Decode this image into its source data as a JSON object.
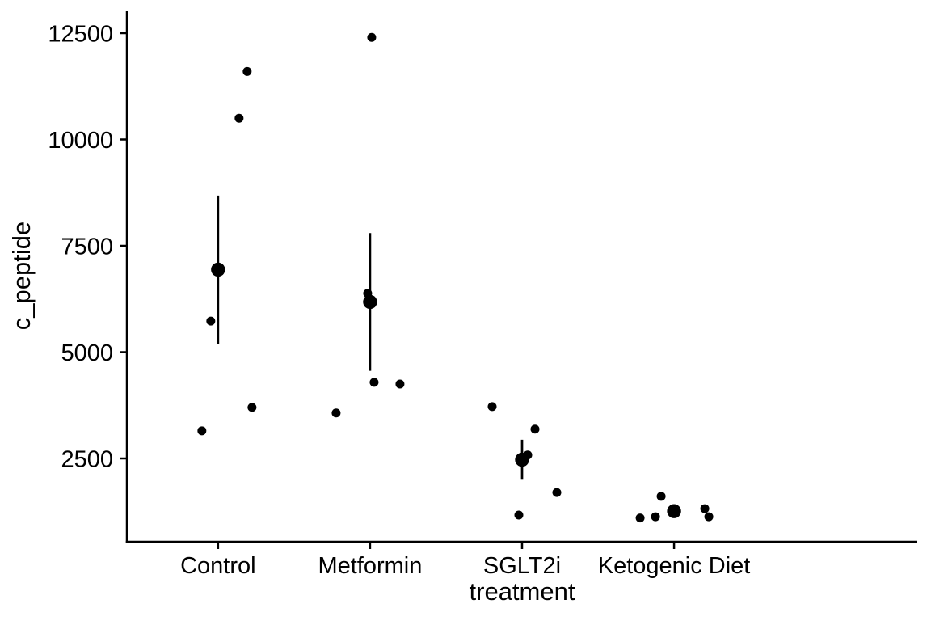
{
  "chart_data": {
    "type": "scatter",
    "title": "",
    "xlabel": "treatment",
    "ylabel": "c_peptide",
    "categories": [
      "Control",
      "Metformin",
      "SGLT2i",
      "Ketogenic Diet"
    ],
    "y_ticks": [
      2500,
      5000,
      7500,
      10000,
      12500
    ],
    "ylim": [
      542,
      12994
    ],
    "grid": false,
    "legend": "none",
    "point_color": "#000000",
    "axis_color": "#000000",
    "background": "#FFFFFF",
    "summary_style": "mean point with mean±SE error bar, no caps",
    "groups": [
      {
        "name": "Control",
        "mean": 6940,
        "se_low": 5200,
        "se_high": 8680,
        "points": [
          {
            "value": 11600,
            "dx": 36
          },
          {
            "value": 10500,
            "dx": 26
          },
          {
            "value": 5730,
            "dx": -9
          },
          {
            "value": 3700,
            "dx": 42
          },
          {
            "value": 3150,
            "dx": -20
          }
        ]
      },
      {
        "name": "Metformin",
        "mean": 6180,
        "se_low": 4560,
        "se_high": 7800,
        "points": [
          {
            "value": 12400,
            "dx": 2
          },
          {
            "value": 6380,
            "dx": -3
          },
          {
            "value": 4290,
            "dx": 5
          },
          {
            "value": 4250,
            "dx": 37
          },
          {
            "value": 3570,
            "dx": -42
          }
        ]
      },
      {
        "name": "SGLT2i",
        "mean": 2470,
        "se_low": 2000,
        "se_high": 2940,
        "points": [
          {
            "value": 3720,
            "dx": -37
          },
          {
            "value": 3190,
            "dx": 16
          },
          {
            "value": 2580,
            "dx": 7
          },
          {
            "value": 1700,
            "dx": 43
          },
          {
            "value": 1170,
            "dx": -4
          }
        ]
      },
      {
        "name": "Ketogenic Diet",
        "mean": 1260,
        "se_low": 1160,
        "se_high": 1360,
        "points": [
          {
            "value": 1610,
            "dx": -16
          },
          {
            "value": 1100,
            "dx": -42
          },
          {
            "value": 1130,
            "dx": -23
          },
          {
            "value": 1320,
            "dx": 38
          },
          {
            "value": 1130,
            "dx": 43
          }
        ]
      }
    ]
  }
}
